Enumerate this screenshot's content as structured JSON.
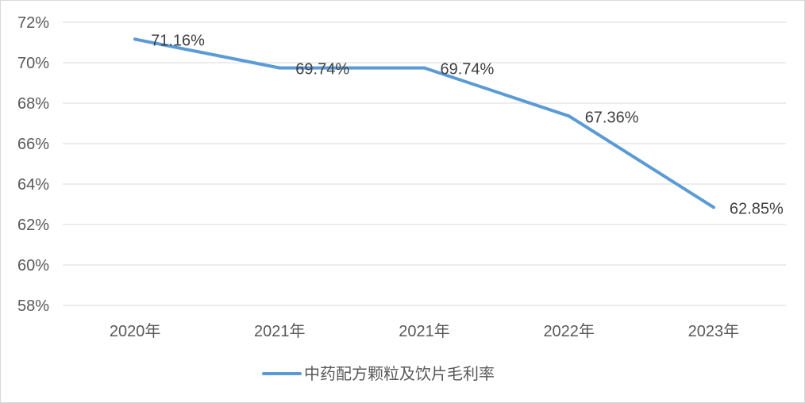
{
  "chart_data": {
    "type": "line",
    "title": "",
    "xlabel": "",
    "ylabel": "",
    "categories": [
      "2020年",
      "2021年",
      "2021年",
      "2022年",
      "2023年"
    ],
    "series": [
      {
        "name": "中药配方颗粒及饮片毛利率",
        "values": [
          71.16,
          69.74,
          69.74,
          67.36,
          62.85
        ],
        "labels": [
          "71.16%",
          "69.74%",
          "69.74%",
          "67.36%",
          "62.85%"
        ],
        "color": "#5b9bd5"
      }
    ],
    "ylim": [
      58,
      72
    ],
    "yticks": [
      58,
      60,
      62,
      64,
      66,
      68,
      70,
      72
    ],
    "ytick_labels": [
      "58%",
      "60%",
      "62%",
      "64%",
      "66%",
      "68%",
      "70%",
      "72%"
    ],
    "grid": true,
    "legend": "bottom",
    "colors": {
      "grid": "#d9d9d9",
      "axis_text": "#595959",
      "label_text": "#404040"
    }
  }
}
